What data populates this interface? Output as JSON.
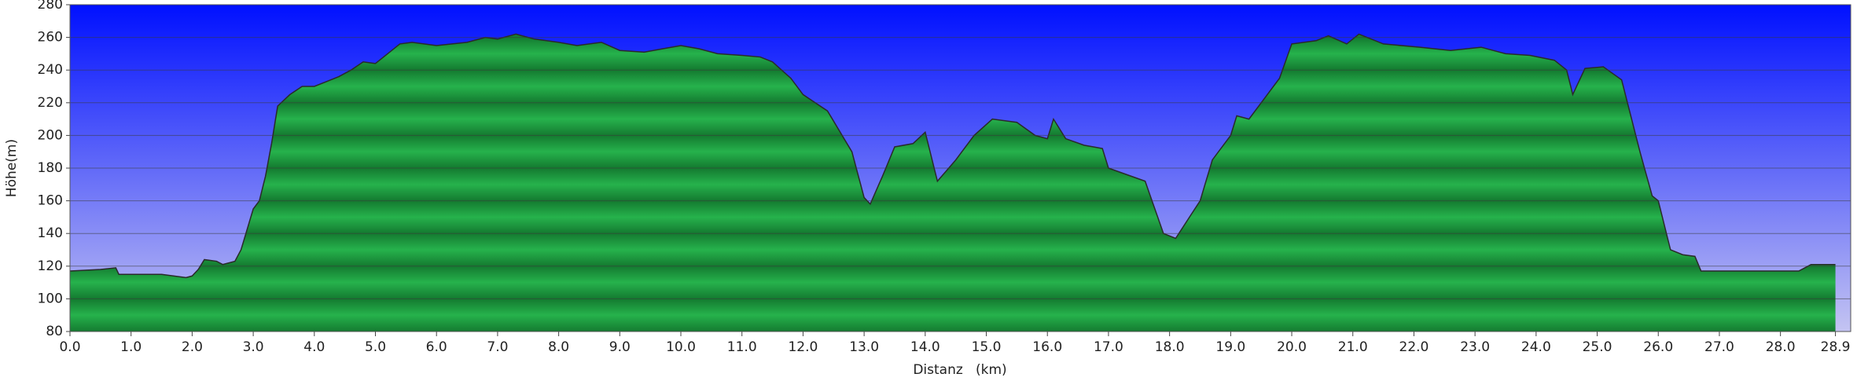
{
  "chart_data": {
    "type": "area",
    "xlabel": "Distanz   (km)",
    "ylabel": "Höhe(m)",
    "color": "#1fa043",
    "line_color": "#2a2a2a",
    "x": [
      0,
      0.5,
      0.75,
      0.8,
      1.0,
      1.5,
      1.9,
      2.0,
      2.1,
      2.2,
      2.4,
      2.5,
      2.7,
      2.8,
      3.0,
      3.1,
      3.2,
      3.3,
      3.4,
      3.6,
      3.8,
      4.0,
      4.2,
      4.4,
      4.6,
      4.8,
      5.0,
      5.2,
      5.4,
      5.6,
      6.0,
      6.5,
      6.8,
      7.0,
      7.3,
      7.6,
      8.0,
      8.3,
      8.7,
      9.0,
      9.4,
      9.7,
      10.0,
      10.3,
      10.6,
      11.0,
      11.3,
      11.5,
      11.8,
      12.0,
      12.4,
      12.8,
      13.0,
      13.1,
      13.3,
      13.5,
      13.8,
      14.0,
      14.2,
      14.5,
      14.8,
      15.1,
      15.5,
      15.8,
      16.0,
      16.1,
      16.3,
      16.6,
      16.9,
      17.0,
      17.6,
      17.9,
      18.1,
      18.5,
      18.7,
      19.0,
      19.1,
      19.3,
      19.6,
      19.8,
      20.0,
      20.4,
      20.6,
      20.9,
      21.1,
      21.5,
      22.1,
      22.6,
      23.1,
      23.5,
      23.9,
      24.3,
      24.5,
      24.6,
      24.8,
      25.1,
      25.4,
      25.7,
      25.9,
      26.0,
      26.2,
      26.4,
      26.6,
      26.7,
      28.3,
      28.5,
      28.9
    ],
    "values": [
      117,
      118,
      119,
      115,
      115,
      115,
      113,
      114,
      118,
      124,
      123,
      121,
      123,
      130,
      155,
      160,
      175,
      195,
      218,
      225,
      230,
      230,
      233,
      236,
      240,
      245,
      244,
      250,
      256,
      257,
      255,
      257,
      260,
      259,
      262,
      259,
      257,
      255,
      257,
      252,
      251,
      253,
      255,
      253,
      250,
      249,
      248,
      245,
      235,
      225,
      215,
      190,
      162,
      158,
      175,
      193,
      195,
      202,
      172,
      185,
      200,
      210,
      208,
      200,
      198,
      210,
      198,
      194,
      192,
      180,
      172,
      140,
      137,
      160,
      185,
      200,
      212,
      210,
      225,
      235,
      256,
      258,
      261,
      256,
      262,
      256,
      254,
      252,
      254,
      250,
      249,
      246,
      240,
      225,
      241,
      242,
      234,
      190,
      163,
      160,
      130,
      127,
      126,
      117,
      117,
      121,
      121
    ],
    "xlim": [
      0,
      29.15
    ],
    "ylim": [
      80,
      280
    ],
    "xticks": [
      {
        "value": 0,
        "label": "0.0"
      },
      {
        "value": 1,
        "label": "1.0"
      },
      {
        "value": 2,
        "label": "2.0"
      },
      {
        "value": 3,
        "label": "3.0"
      },
      {
        "value": 4,
        "label": "4.0"
      },
      {
        "value": 5,
        "label": "5.0"
      },
      {
        "value": 6,
        "label": "6.0"
      },
      {
        "value": 7,
        "label": "7.0"
      },
      {
        "value": 8,
        "label": "8.0"
      },
      {
        "value": 9,
        "label": "9.0"
      },
      {
        "value": 10,
        "label": "10.0"
      },
      {
        "value": 11,
        "label": "11.0"
      },
      {
        "value": 12,
        "label": "12.0"
      },
      {
        "value": 13,
        "label": "13.0"
      },
      {
        "value": 14,
        "label": "14.0"
      },
      {
        "value": 15,
        "label": "15.0"
      },
      {
        "value": 16,
        "label": "16.0"
      },
      {
        "value": 17,
        "label": "17.0"
      },
      {
        "value": 18,
        "label": "18.0"
      },
      {
        "value": 19,
        "label": "19.0"
      },
      {
        "value": 20,
        "label": "20.0"
      },
      {
        "value": 21,
        "label": "21.0"
      },
      {
        "value": 22,
        "label": "22.0"
      },
      {
        "value": 23,
        "label": "23.0"
      },
      {
        "value": 24,
        "label": "24.0"
      },
      {
        "value": 25,
        "label": "25.0"
      },
      {
        "value": 26,
        "label": "26.0"
      },
      {
        "value": 27,
        "label": "27.0"
      },
      {
        "value": 28,
        "label": "28.0"
      },
      {
        "value": 28.9,
        "label": "28.9"
      }
    ],
    "yticks": [
      80,
      100,
      120,
      140,
      160,
      180,
      200,
      220,
      240,
      260,
      280
    ],
    "grid": true
  }
}
